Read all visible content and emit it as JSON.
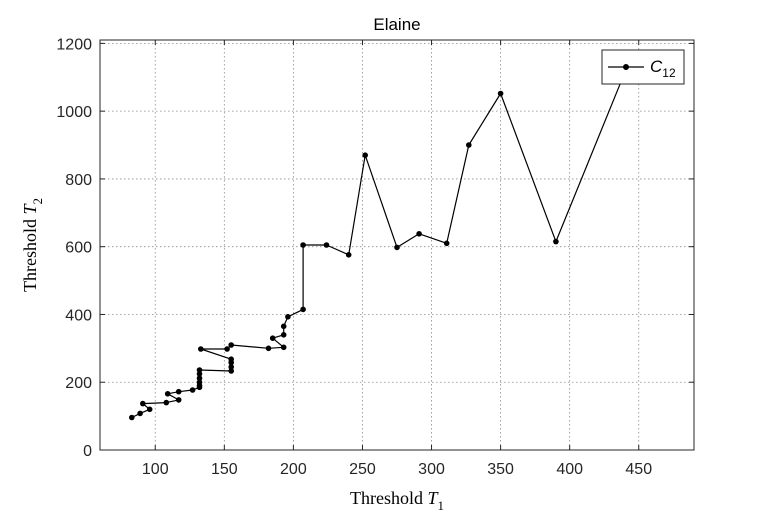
{
  "chart_data": {
    "type": "line",
    "title": "Elaine",
    "xlabel": {
      "text": "Threshold ",
      "var": "T",
      "sub": "1"
    },
    "ylabel": {
      "text": "Threshold ",
      "var": "T",
      "sub": "2"
    },
    "xlim": [
      60,
      490
    ],
    "ylim": [
      0,
      1210
    ],
    "xticks": [
      100,
      150,
      200,
      250,
      300,
      350,
      400,
      450
    ],
    "yticks": [
      0,
      200,
      400,
      600,
      800,
      1000,
      1200
    ],
    "grid": true,
    "grid_style": "dotted",
    "legend_position": "top-right",
    "series": [
      {
        "name": {
          "var": "C",
          "sub": "12"
        },
        "color": "#000000",
        "marker": "circle",
        "points": [
          [
            83,
            96
          ],
          [
            89,
            108
          ],
          [
            96,
            120
          ],
          [
            91,
            137
          ],
          [
            108,
            140
          ],
          [
            117,
            148
          ],
          [
            109,
            166
          ],
          [
            117,
            172
          ],
          [
            127,
            177
          ],
          [
            132,
            185
          ],
          [
            132,
            190
          ],
          [
            132,
            200
          ],
          [
            132,
            212
          ],
          [
            132,
            225
          ],
          [
            132,
            236
          ],
          [
            155,
            233
          ],
          [
            155,
            245
          ],
          [
            155,
            258
          ],
          [
            155,
            268
          ],
          [
            133,
            298
          ],
          [
            152,
            298
          ],
          [
            155,
            310
          ],
          [
            182,
            300
          ],
          [
            193,
            303
          ],
          [
            185,
            330
          ],
          [
            193,
            340
          ],
          [
            193,
            365
          ],
          [
            196,
            393
          ],
          [
            207,
            415
          ],
          [
            207,
            605
          ],
          [
            224,
            605
          ],
          [
            240,
            576
          ],
          [
            252,
            870
          ],
          [
            275,
            598
          ],
          [
            291,
            638
          ],
          [
            311,
            610
          ],
          [
            327,
            900
          ],
          [
            350,
            1052
          ],
          [
            390,
            615
          ],
          [
            440,
            1115
          ]
        ]
      }
    ]
  }
}
